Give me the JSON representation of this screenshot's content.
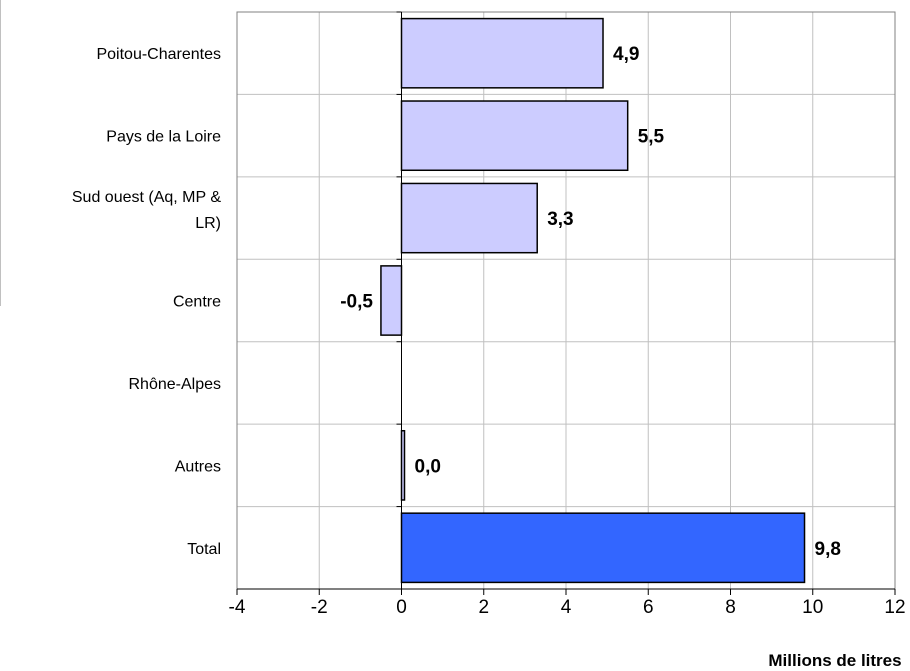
{
  "chart_data": {
    "type": "bar",
    "orientation": "horizontal",
    "categories": [
      "Poitou-Charentes",
      "Pays de la Loire",
      "Sud ouest (Aq, MP & LR)",
      "Centre",
      "Rhône-Alpes",
      "Autres",
      "Total"
    ],
    "values": [
      4.9,
      5.5,
      3.3,
      -0.5,
      null,
      0.0,
      9.8
    ],
    "data_labels": [
      "4,9",
      "5,5",
      "3,3",
      "-0,5",
      "",
      "0,0",
      "9,8"
    ],
    "xlim": [
      -4,
      12
    ],
    "xticks": [
      -4,
      -2,
      0,
      2,
      4,
      6,
      8,
      10,
      12
    ],
    "xlabel": "Millions de litres",
    "grid": true,
    "colors": {
      "bar": "#ccccff",
      "total_bar": "#3366ff",
      "bar_border": "#000000",
      "grid": "#c0c0c0"
    }
  }
}
